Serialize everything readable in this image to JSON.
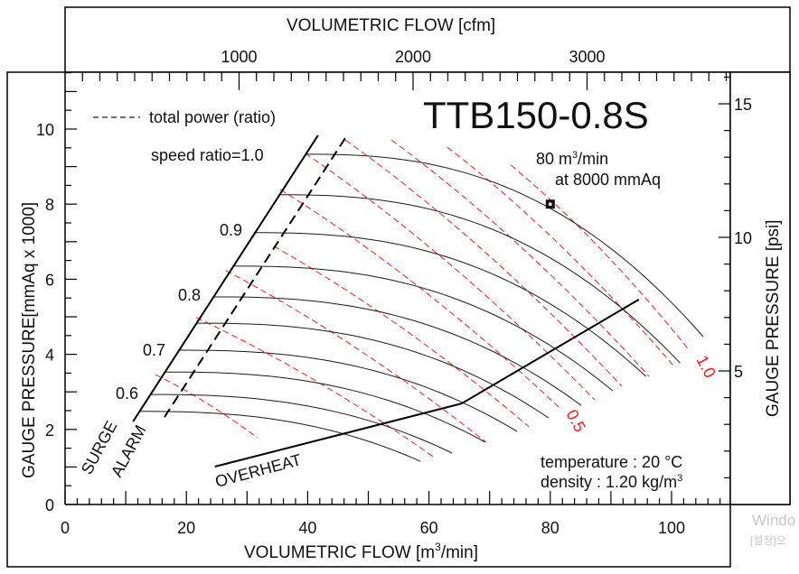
{
  "chart_data": {
    "type": "line",
    "title": "TTB150-0.8S",
    "xlabel": {
      "main": "VOLUMETRIC FLOW [m",
      "sup": "3",
      "end": "/min]"
    },
    "ylabel": "GAUGE PRESSURE[mmAq x 1000]",
    "x2label": "VOLUMETRIC FLOW [cfm]",
    "y2label": "GAUGE PRESSURE [psi]",
    "xlim": [
      0,
      110
    ],
    "ylim": [
      0,
      11.5
    ],
    "x_ticks": [
      0,
      20,
      40,
      60,
      80,
      100
    ],
    "y_ticks": [
      0,
      2,
      4,
      6,
      8,
      10
    ],
    "x2_ticks": [
      1000,
      2000,
      3000
    ],
    "y2_ticks": [
      5,
      10,
      15
    ],
    "legend": {
      "label": "total power (ratio)",
      "style": "red dashed",
      "position": "top-left"
    },
    "speed_label_prefix": "speed ratio=",
    "speed_labels": [
      "1.0",
      "0.9",
      "0.8",
      "0.7",
      "0.6"
    ],
    "speed_curves": [
      {
        "ratio": 1.0,
        "start": [
          39.7,
          9.33
        ],
        "end": [
          105.2,
          4.47
        ]
      },
      {
        "ratio": 0.95,
        "start": [
          35.4,
          8.25
        ],
        "end": [
          101.4,
          3.77
        ]
      },
      {
        "ratio": 0.9,
        "start": [
          31.3,
          7.24
        ],
        "end": [
          95.8,
          3.41
        ]
      },
      {
        "ratio": 0.85,
        "start": [
          27.8,
          6.35
        ],
        "end": [
          90.3,
          3.03
        ]
      },
      {
        "ratio": 0.8,
        "start": [
          24.5,
          5.53
        ],
        "end": [
          85.1,
          2.64
        ]
      },
      {
        "ratio": 0.75,
        "start": [
          21.7,
          4.83
        ],
        "end": [
          79.7,
          2.31
        ]
      },
      {
        "ratio": 0.7,
        "start": [
          18.8,
          4.11
        ],
        "end": [
          74.5,
          1.95
        ]
      },
      {
        "ratio": 0.65,
        "start": [
          16.5,
          3.53
        ],
        "end": [
          69.3,
          1.66
        ]
      },
      {
        "ratio": 0.6,
        "start": [
          14.1,
          2.93
        ],
        "end": [
          63.8,
          1.37
        ]
      },
      {
        "ratio": 0.55,
        "start": [
          12.3,
          2.48
        ],
        "end": [
          58.6,
          1.15
        ]
      }
    ],
    "power_lines": [
      {
        "ratio": 1.0,
        "start": [
          73.5,
          9.04
        ],
        "end": [
          102.8,
          4.13
        ]
      },
      {
        "ratio": 0.9,
        "start": [
          63.0,
          9.52
        ],
        "end": [
          100.3,
          3.7
        ]
      },
      {
        "ratio": 0.8,
        "start": [
          53.8,
          9.71
        ],
        "end": [
          96.3,
          3.41
        ]
      },
      {
        "ratio": 0.7,
        "start": [
          46.2,
          9.71
        ],
        "end": [
          91.8,
          3.15
        ]
      },
      {
        "ratio": 0.6,
        "start": [
          39.6,
          9.35
        ],
        "end": [
          87.3,
          2.79
        ]
      },
      {
        "ratio": 0.5,
        "start": [
          35.5,
          8.39
        ],
        "end": [
          81.7,
          2.55
        ]
      },
      {
        "ratio": 0.4,
        "start": [
          34.4,
          6.88
        ],
        "end": [
          76.5,
          2.07
        ]
      },
      {
        "ratio": 0.3,
        "start": [
          26.5,
          6.23
        ],
        "end": [
          69.4,
          1.66
        ]
      },
      {
        "ratio": 0.2,
        "start": [
          21.6,
          4.98
        ],
        "end": [
          61.1,
          1.23
        ]
      },
      {
        "ratio": 0.1,
        "start": [
          14.9,
          3.46
        ],
        "end": [
          31.7,
          1.78
        ]
      }
    ],
    "power_labels": [
      "1.0",
      "0.5"
    ],
    "surge_line": {
      "label": "SURGE",
      "points": [
        [
          11.2,
          2.21
        ],
        [
          41.7,
          9.83
        ]
      ]
    },
    "alarm_line": {
      "label": "ALARM",
      "points": [
        [
          16.4,
          2.33
        ],
        [
          46.2,
          9.76
        ]
      ]
    },
    "overheat_line": {
      "label": "OVERHEAT",
      "points": [
        [
          24.7,
          1.01
        ],
        [
          65.4,
          2.69
        ],
        [
          94.6,
          5.46
        ]
      ]
    },
    "rated_point": {
      "x": 80,
      "y": 8,
      "label_line1_a": "80 m",
      "label_line1_sup": "3",
      "label_line1_b": "/min",
      "label_line2": "at 8000 mmAq"
    },
    "conditions": {
      "temperature": "temperature : 20 °C",
      "density_a": "density : 1.20 kg/m",
      "density_sup": "3"
    },
    "colors": {
      "curve": "#1a1a1a",
      "power": "#ff1a1a",
      "axis": "#000000"
    }
  },
  "watermark": {
    "line1": "Windo",
    "line2": "[설정]으"
  }
}
